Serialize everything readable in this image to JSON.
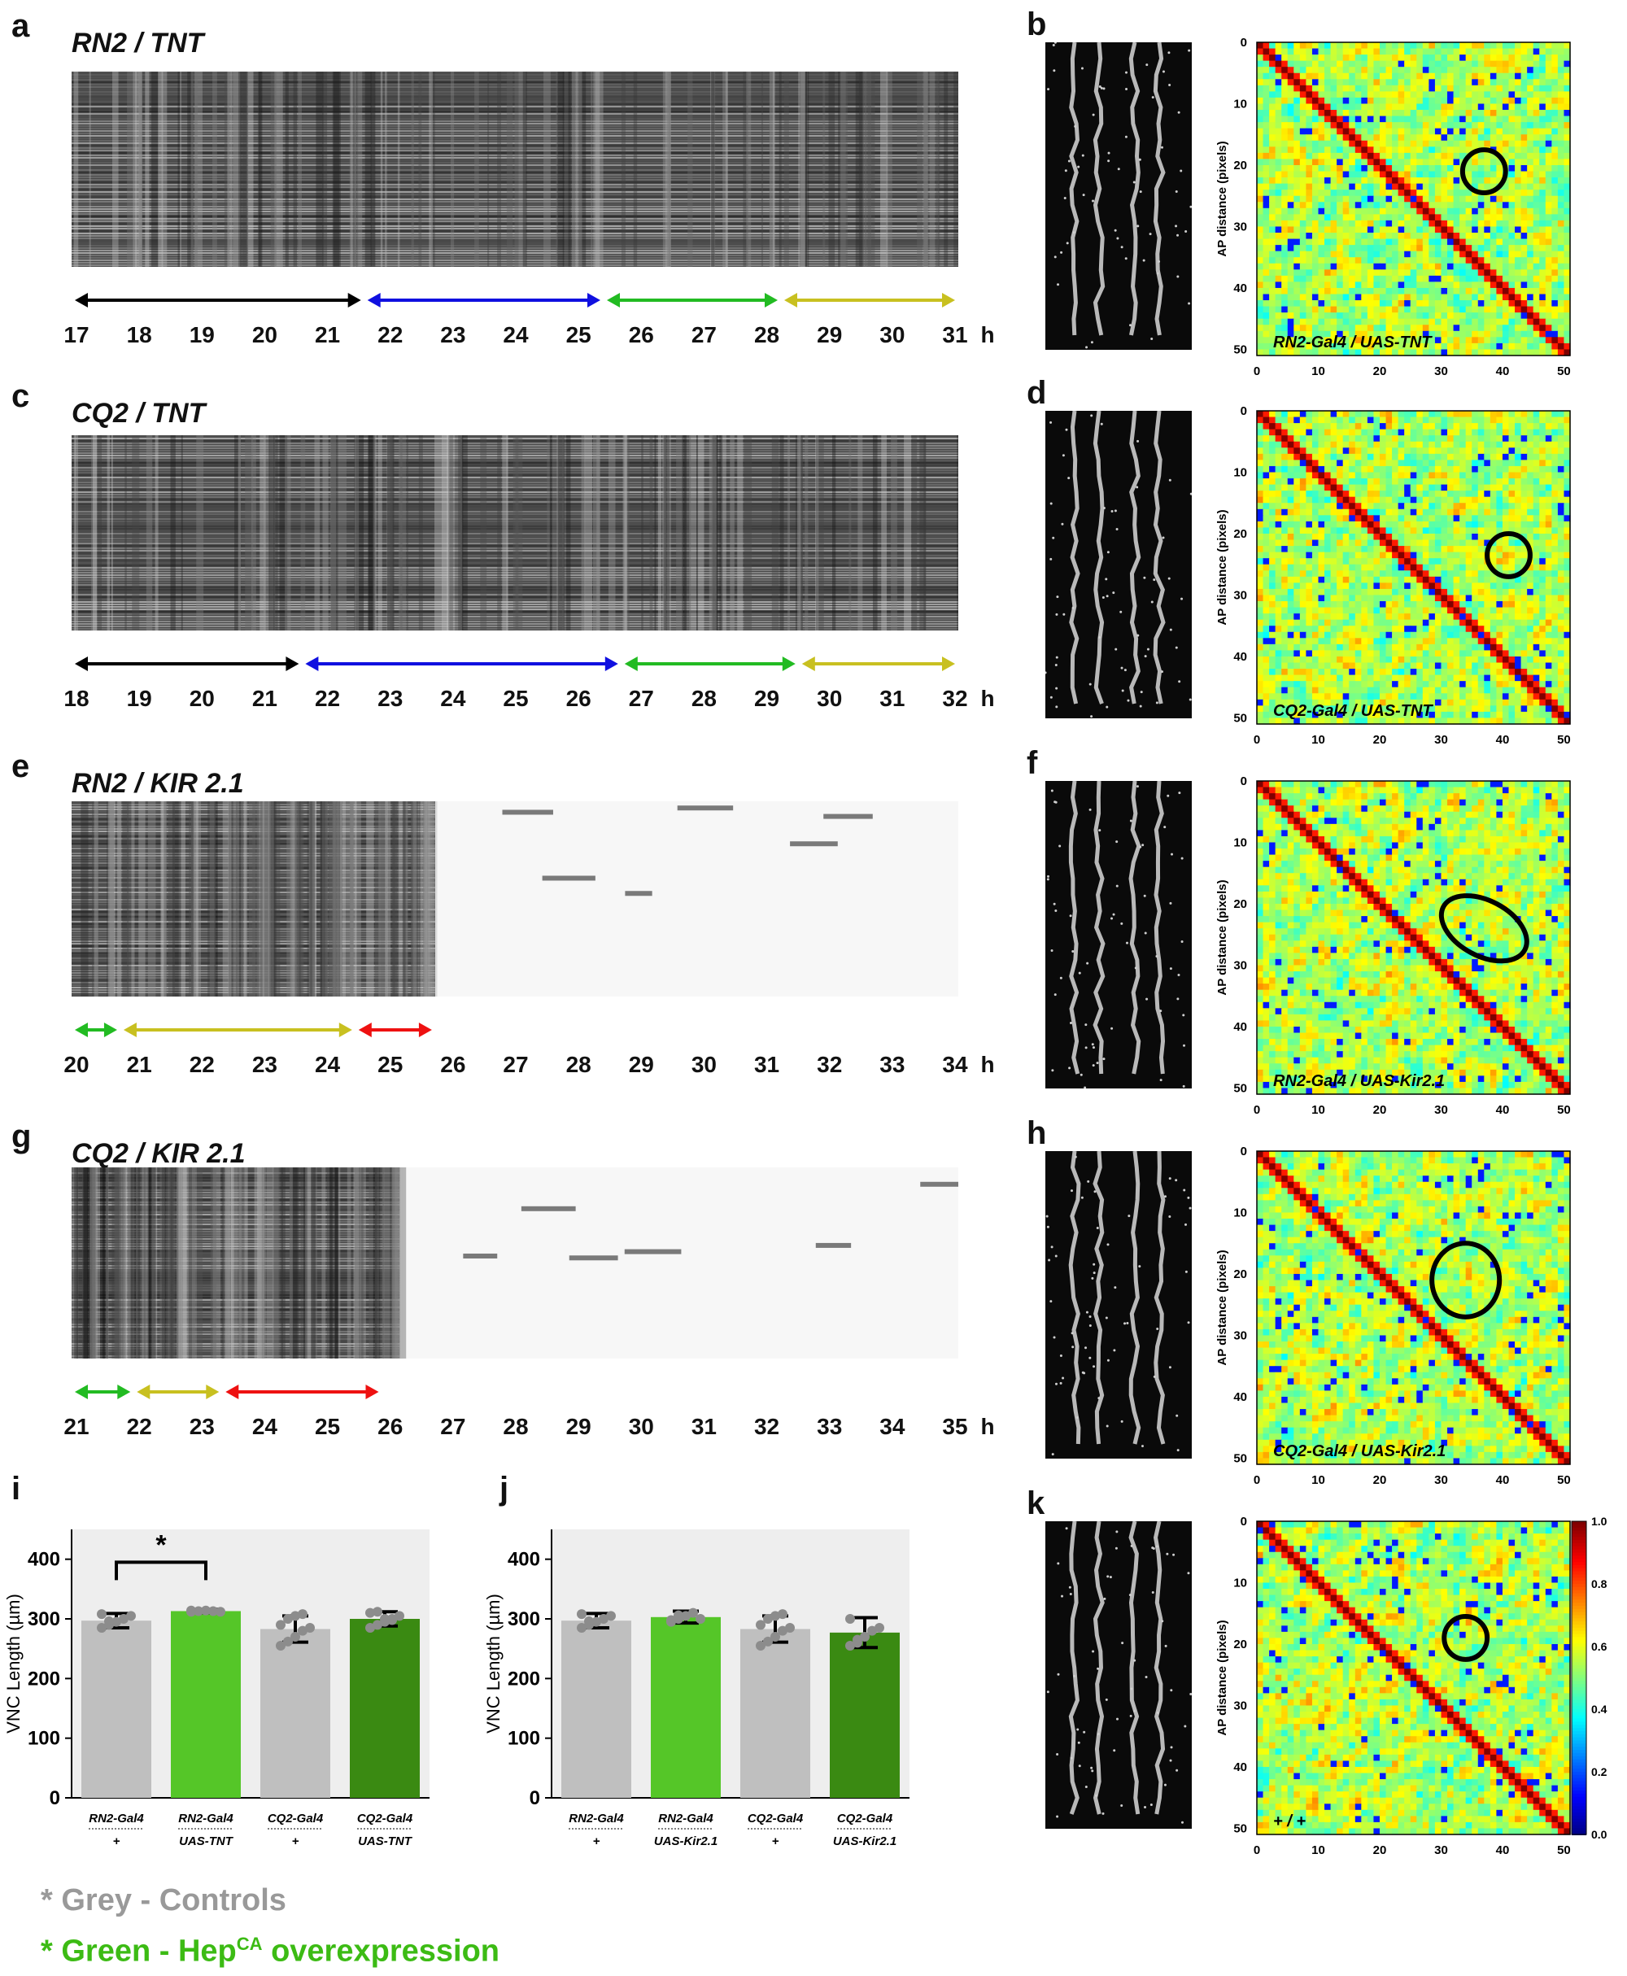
{
  "panels": [
    {
      "id": "a",
      "letter": "a",
      "title": "RN2 / TNT",
      "kymo": "active-full",
      "hours": [
        "17",
        "18",
        "19",
        "20",
        "21",
        "22",
        "23",
        "24",
        "25",
        "26",
        "27",
        "28",
        "29",
        "30",
        "31"
      ],
      "unit": "h",
      "arrows": [
        {
          "from": 0,
          "to": 0.33,
          "color": "#000000"
        },
        {
          "from": 0.33,
          "to": 0.6,
          "color": "#1010e0"
        },
        {
          "from": 0.6,
          "to": 0.8,
          "color": "#22bb22"
        },
        {
          "from": 0.8,
          "to": 1.0,
          "color": "#c8c020"
        }
      ]
    },
    {
      "id": "c",
      "letter": "c",
      "title": "CQ2 / TNT",
      "kymo": "active-full",
      "hours": [
        "18",
        "19",
        "20",
        "21",
        "22",
        "23",
        "24",
        "25",
        "26",
        "27",
        "28",
        "29",
        "30",
        "31",
        "32"
      ],
      "unit": "h",
      "arrows": [
        {
          "from": 0,
          "to": 0.26,
          "color": "#000000"
        },
        {
          "from": 0.26,
          "to": 0.62,
          "color": "#1010e0"
        },
        {
          "from": 0.62,
          "to": 0.82,
          "color": "#22bb22"
        },
        {
          "from": 0.82,
          "to": 1.0,
          "color": "#c8c020"
        }
      ]
    },
    {
      "id": "e",
      "letter": "e",
      "title": "RN2 / KIR 2.1",
      "kymo": "active-partial",
      "hours": [
        "20",
        "21",
        "22",
        "23",
        "24",
        "25",
        "26",
        "27",
        "28",
        "29",
        "30",
        "31",
        "32",
        "33",
        "34"
      ],
      "unit": "h",
      "arrows": [
        {
          "from": 0,
          "to": 0.055,
          "color": "#22bb22"
        },
        {
          "from": 0.055,
          "to": 0.32,
          "color": "#c8c020"
        },
        {
          "from": 0.32,
          "to": 0.41,
          "color": "#ee1111"
        }
      ]
    },
    {
      "id": "g",
      "letter": "g",
      "title": "CQ2 / KIR 2.1",
      "kymo": "active-short",
      "hours": [
        "21",
        "22",
        "23",
        "24",
        "25",
        "26",
        "27",
        "28",
        "29",
        "30",
        "31",
        "32",
        "33",
        "34",
        "35"
      ],
      "unit": "h",
      "arrows": [
        {
          "from": 0,
          "to": 0.07,
          "color": "#22bb22"
        },
        {
          "from": 0.07,
          "to": 0.17,
          "color": "#c8c020"
        },
        {
          "from": 0.17,
          "to": 0.35,
          "color": "#ee1111"
        }
      ]
    }
  ],
  "heatmaps": [
    {
      "letter": "b",
      "label": "RN2-Gal4 / UAS-TNT",
      "seed": 11
    },
    {
      "letter": "d",
      "label": "CQ2-Gal4 / UAS-TNT",
      "seed": 23
    },
    {
      "letter": "f",
      "label": "RN2-Gal4 / UAS-Kir2.1",
      "seed": 37
    },
    {
      "letter": "h",
      "label": "CQ2-Gal4 / UAS-Kir2.1",
      "seed": 41
    },
    {
      "letter": "k",
      "label": "+ / +",
      "seed": 53
    }
  ],
  "heatmap_axes": {
    "xlabel": "AP distance (pixels)",
    "ylabel": "AP distance (pixels)",
    "ticks": [
      "0",
      "10",
      "20",
      "30",
      "40",
      "50"
    ],
    "colorbar_ticks": [
      "1.0",
      "0.8",
      "0.6",
      "0.4",
      "0.2",
      "0.0"
    ]
  },
  "chart_data": [
    {
      "type": "bar",
      "letter": "i",
      "ylabel": "VNC Length (µm)",
      "ylim": [
        0,
        450
      ],
      "yticks": [
        "0",
        "100",
        "200",
        "300",
        "400"
      ],
      "categories": [
        {
          "top": "RN2-Gal4",
          "bottom": "+"
        },
        {
          "top": "RN2-Gal4",
          "bottom": "UAS-TNT"
        },
        {
          "top": "CQ2-Gal4",
          "bottom": "+"
        },
        {
          "top": "CQ2-Gal4",
          "bottom": "UAS-TNT"
        }
      ],
      "values": [
        297,
        313,
        283,
        300
      ],
      "errors": [
        12,
        3,
        22,
        12
      ],
      "colors": [
        "#bfbfbf",
        "#55c628",
        "#bfbfbf",
        "#3a8a12"
      ],
      "points": [
        [
          285,
          290,
          295,
          300,
          305,
          308,
          296
        ],
        [
          312,
          313,
          314,
          313,
          312,
          314
        ],
        [
          255,
          262,
          270,
          280,
          285,
          290,
          300,
          305,
          308
        ],
        [
          285,
          290,
          295,
          300,
          305,
          310,
          312,
          300,
          298
        ]
      ],
      "significance": {
        "label": "*",
        "from": 0,
        "to": 1
      }
    },
    {
      "type": "bar",
      "letter": "j",
      "ylabel": "VNC Length (µm)",
      "ylim": [
        0,
        450
      ],
      "yticks": [
        "0",
        "100",
        "200",
        "300",
        "400"
      ],
      "categories": [
        {
          "top": "RN2-Gal4",
          "bottom": "+"
        },
        {
          "top": "RN2-Gal4",
          "bottom": "UAS-Kir2.1"
        },
        {
          "top": "CQ2-Gal4",
          "bottom": "+"
        },
        {
          "top": "CQ2-Gal4",
          "bottom": "UAS-Kir2.1"
        }
      ],
      "values": [
        297,
        303,
        283,
        277
      ],
      "errors": [
        12,
        10,
        22,
        25
      ],
      "colors": [
        "#bfbfbf",
        "#55c628",
        "#bfbfbf",
        "#3a8a12"
      ],
      "points": [
        [
          285,
          290,
          295,
          300,
          305,
          308,
          296
        ],
        [
          295,
          300,
          305,
          310,
          300,
          298,
          306
        ],
        [
          255,
          262,
          270,
          280,
          285,
          290,
          300,
          305,
          308
        ],
        [
          255,
          260,
          270,
          280,
          285,
          300,
          265
        ]
      ]
    }
  ],
  "legend": {
    "grey": {
      "text": "* Grey - Controls",
      "color": "#999999"
    },
    "green": {
      "text": "* Green - Hep",
      "sup": "CA",
      "tail": " overexpression",
      "color": "#3cbb14"
    }
  }
}
